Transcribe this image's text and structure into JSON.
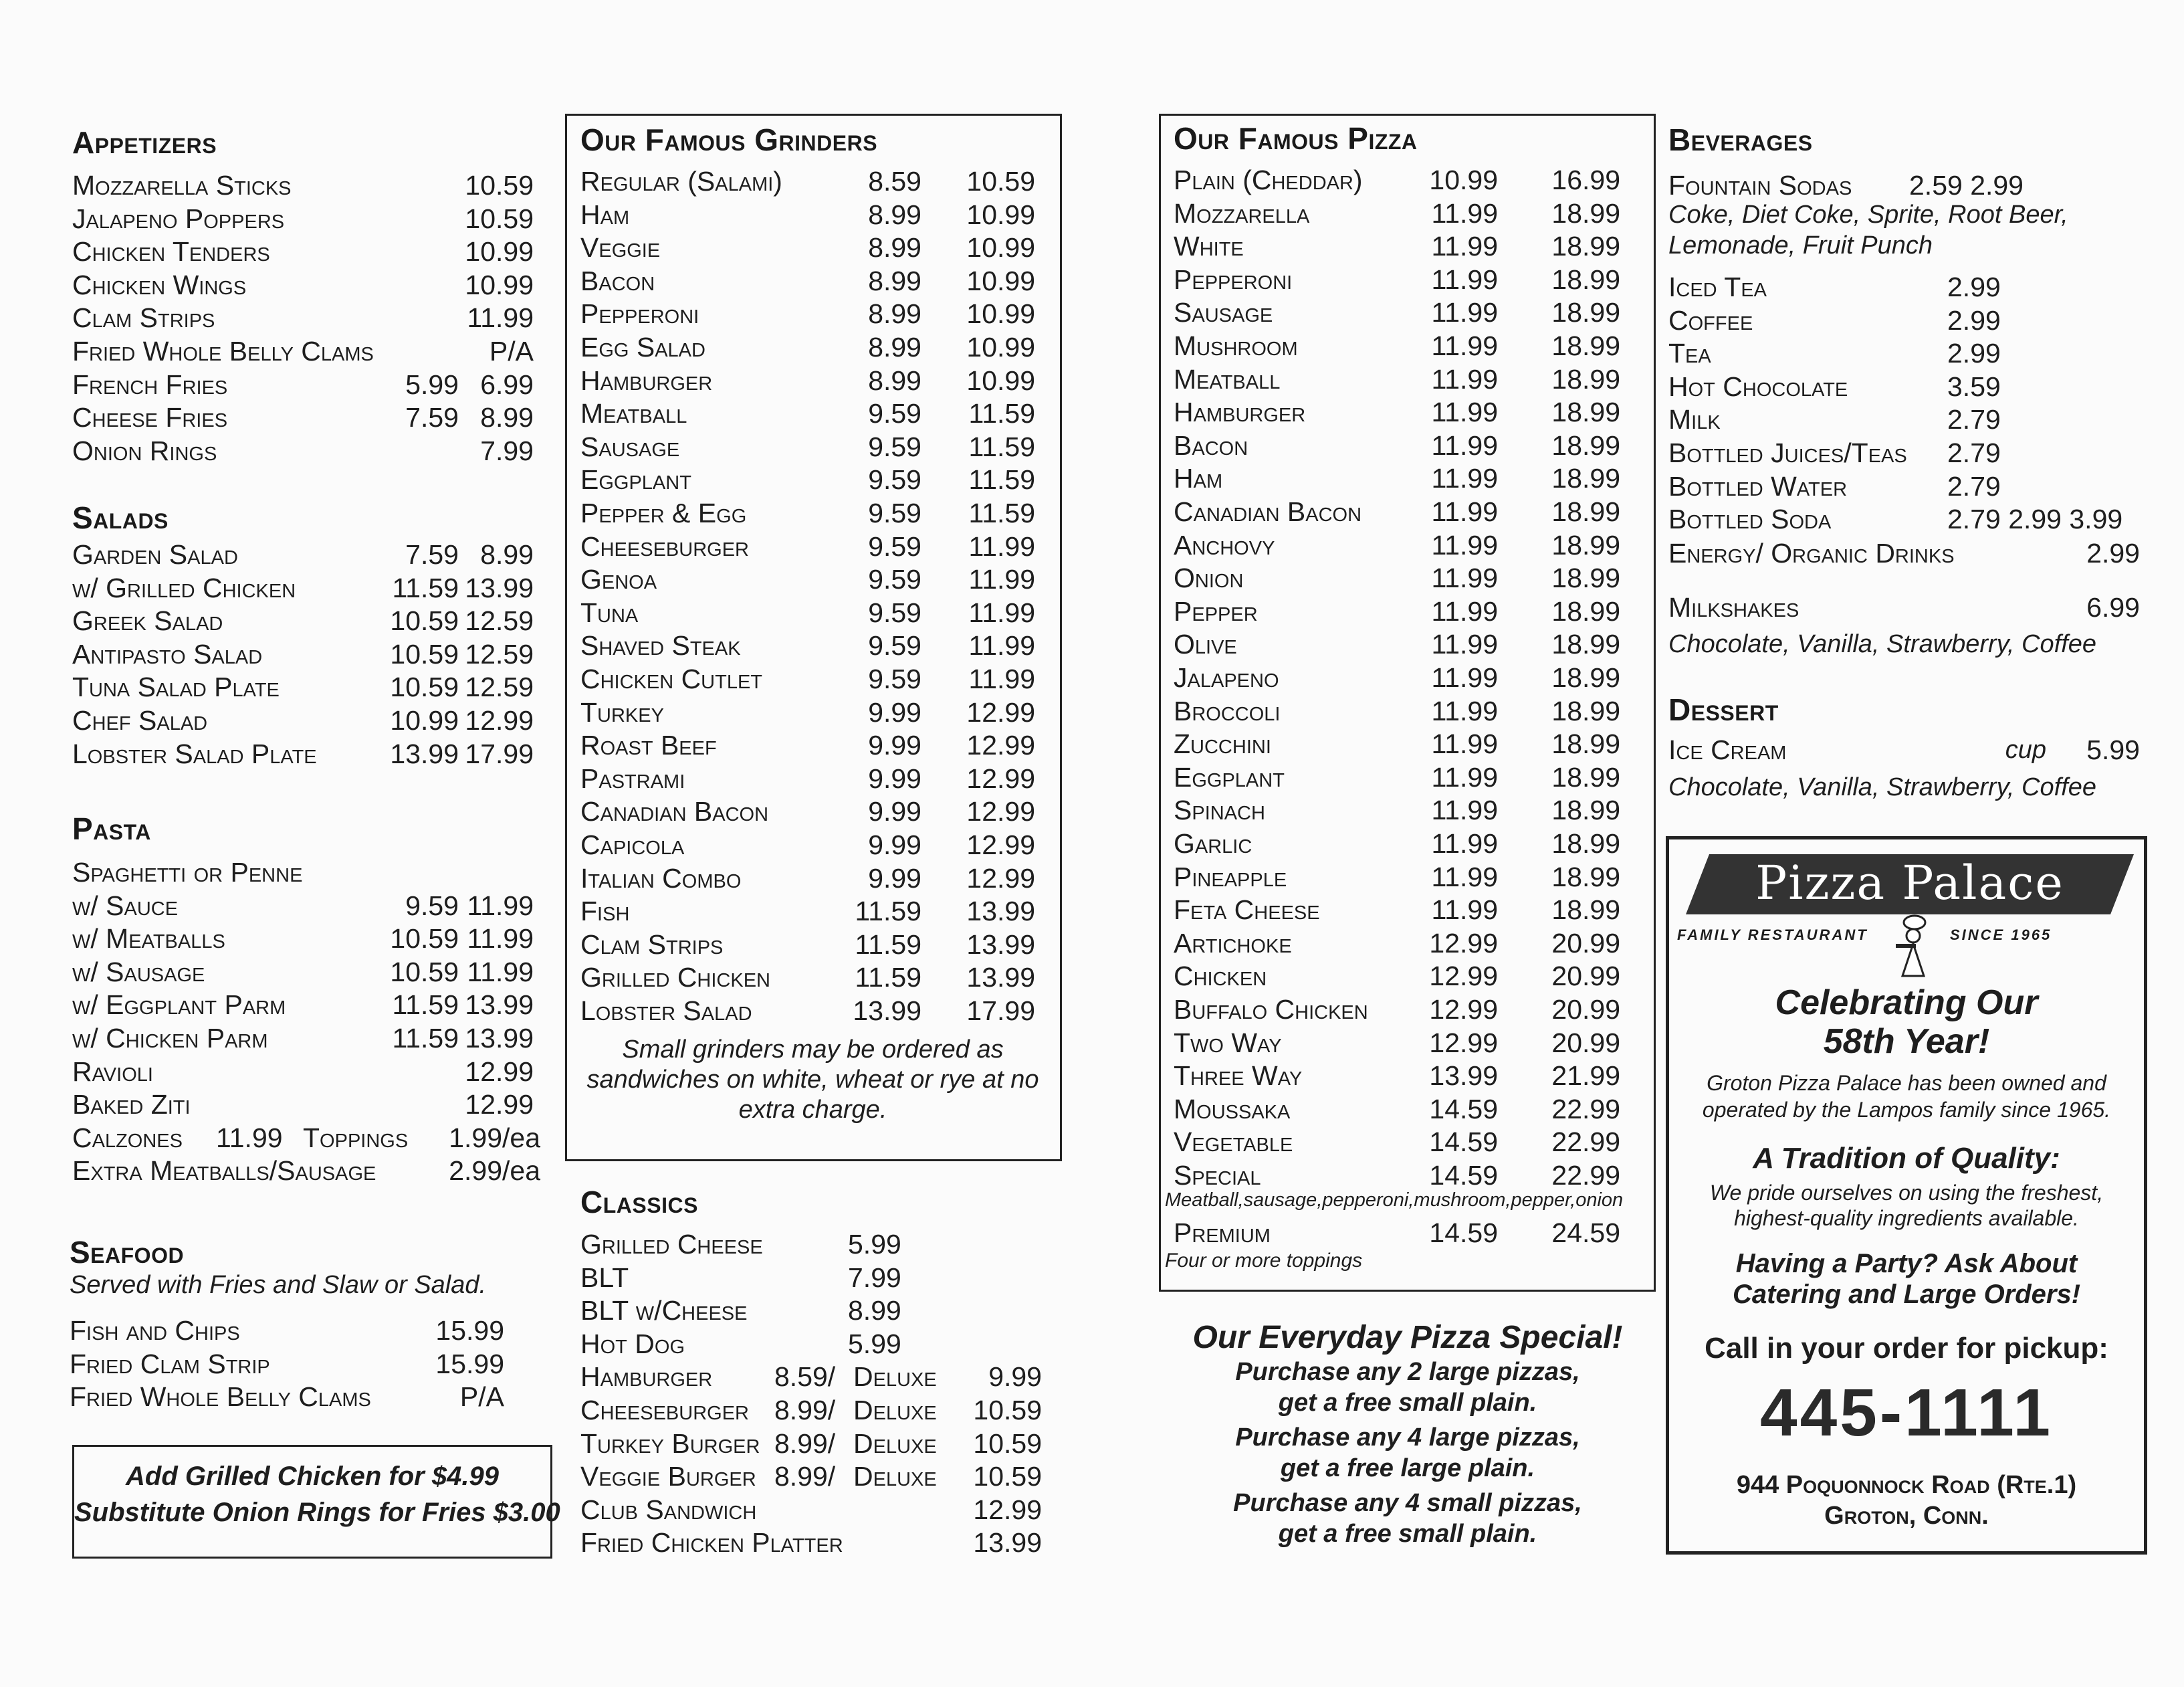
{
  "appetizers": {
    "title": "Appetizers",
    "items": [
      {
        "name": "Mozzarella Sticks",
        "p1": "",
        "p2": "10.59"
      },
      {
        "name": "Jalapeno Poppers",
        "p1": "",
        "p2": "10.59"
      },
      {
        "name": "Chicken Tenders",
        "p1": "",
        "p2": "10.99"
      },
      {
        "name": "Chicken Wings",
        "p1": "",
        "p2": "10.99"
      },
      {
        "name": "Clam Strips",
        "p1": "",
        "p2": "11.99"
      },
      {
        "name": "Fried Whole Belly Clams",
        "p1": "",
        "p2": "P/A"
      },
      {
        "name": "French Fries",
        "p1": "5.99",
        "p2": "6.99"
      },
      {
        "name": "Cheese Fries",
        "p1": "7.59",
        "p2": "8.99"
      },
      {
        "name": "Onion Rings",
        "p1": "",
        "p2": "7.99"
      }
    ]
  },
  "salads": {
    "title": "Salads",
    "items": [
      {
        "name": "Garden Salad",
        "p1": "7.59",
        "p2": "8.99"
      },
      {
        "name": "w/ Grilled Chicken",
        "p1": "11.59",
        "p2": "13.99"
      },
      {
        "name": "Greek Salad",
        "p1": "10.59",
        "p2": "12.59"
      },
      {
        "name": "Antipasto Salad",
        "p1": "10.59",
        "p2": "12.59"
      },
      {
        "name": "Tuna Salad Plate",
        "p1": "10.59",
        "p2": "12.59"
      },
      {
        "name": "Chef Salad",
        "p1": "10.99",
        "p2": "12.99"
      },
      {
        "name": "Lobster Salad Plate",
        "p1": "13.99",
        "p2": "17.99"
      }
    ]
  },
  "pasta": {
    "title": "Pasta",
    "items": [
      {
        "name": "Spaghetti or Penne",
        "p1": "",
        "p2": ""
      },
      {
        "name": "w/ Sauce",
        "p1": "9.59",
        "p2": "11.99"
      },
      {
        "name": "w/ Meatballs",
        "p1": "10.59",
        "p2": "11.99"
      },
      {
        "name": "w/ Sausage",
        "p1": "10.59",
        "p2": "11.99"
      },
      {
        "name": "w/ Eggplant Parm",
        "p1": "11.59",
        "p2": "13.99"
      },
      {
        "name": "w/ Chicken Parm",
        "p1": "11.59",
        "p2": "13.99"
      },
      {
        "name": "Ravioli",
        "p1": "",
        "p2": "12.99"
      },
      {
        "name": "Baked Ziti",
        "p1": "",
        "p2": "12.99"
      }
    ],
    "calzones": {
      "name": "Calzones",
      "price": "11.99",
      "toppings_label": "Toppings",
      "toppings_price": "1.99/ea"
    },
    "extra": {
      "name": "Extra Meatballs/Sausage",
      "price": "2.99/ea"
    }
  },
  "seafood": {
    "title": "Seafood",
    "subtitle": "Served with Fries and Slaw or Salad.",
    "items": [
      {
        "name": "Fish and Chips",
        "p1": "",
        "p2": "15.99"
      },
      {
        "name": "Fried Clam Strip",
        "p1": "",
        "p2": "15.99"
      },
      {
        "name": "Fried Whole Belly Clams",
        "p1": "",
        "p2": "P/A"
      }
    ]
  },
  "addons": {
    "line1": "Add Grilled Chicken for $4.99",
    "line2": "Substitute Onion Rings for Fries $3.00"
  },
  "grinders": {
    "title": "Our Famous Grinders",
    "items": [
      {
        "name": "Regular (Salami)",
        "p1": "8.59",
        "p2": "10.59"
      },
      {
        "name": "Ham",
        "p1": "8.99",
        "p2": "10.99"
      },
      {
        "name": "Veggie",
        "p1": "8.99",
        "p2": "10.99"
      },
      {
        "name": "Bacon",
        "p1": "8.99",
        "p2": "10.99"
      },
      {
        "name": "Pepperoni",
        "p1": "8.99",
        "p2": "10.99"
      },
      {
        "name": "Egg Salad",
        "p1": "8.99",
        "p2": "10.99"
      },
      {
        "name": "Hamburger",
        "p1": "8.99",
        "p2": "10.99"
      },
      {
        "name": "Meatball",
        "p1": "9.59",
        "p2": "11.59"
      },
      {
        "name": "Sausage",
        "p1": "9.59",
        "p2": "11.59"
      },
      {
        "name": "Eggplant",
        "p1": "9.59",
        "p2": "11.59"
      },
      {
        "name": "Pepper & Egg",
        "p1": "9.59",
        "p2": "11.59"
      },
      {
        "name": "Cheeseburger",
        "p1": "9.59",
        "p2": "11.99"
      },
      {
        "name": "Genoa",
        "p1": "9.59",
        "p2": "11.99"
      },
      {
        "name": "Tuna",
        "p1": "9.59",
        "p2": "11.99"
      },
      {
        "name": "Shaved Steak",
        "p1": "9.59",
        "p2": "11.99"
      },
      {
        "name": "Chicken Cutlet",
        "p1": "9.59",
        "p2": "11.99"
      },
      {
        "name": "Turkey",
        "p1": "9.99",
        "p2": "12.99"
      },
      {
        "name": "Roast Beef",
        "p1": "9.99",
        "p2": "12.99"
      },
      {
        "name": "Pastrami",
        "p1": "9.99",
        "p2": "12.99"
      },
      {
        "name": "Canadian Bacon",
        "p1": "9.99",
        "p2": "12.99"
      },
      {
        "name": "Capicola",
        "p1": "9.99",
        "p2": "12.99"
      },
      {
        "name": "Italian Combo",
        "p1": "9.99",
        "p2": "12.99"
      },
      {
        "name": "Fish",
        "p1": "11.59",
        "p2": "13.99"
      },
      {
        "name": "Clam Strips",
        "p1": "11.59",
        "p2": "13.99"
      },
      {
        "name": "Grilled Chicken",
        "p1": "11.59",
        "p2": "13.99"
      },
      {
        "name": "Lobster Salad",
        "p1": "13.99",
        "p2": "17.99"
      }
    ],
    "note": [
      "Small grinders may be ordered as",
      "sandwiches on white, wheat or rye at no",
      "extra charge."
    ]
  },
  "classics": {
    "title": "Classics",
    "items": [
      {
        "name": "Grilled Cheese",
        "p1": "5.99",
        "dl": "",
        "p2": ""
      },
      {
        "name": "BLT",
        "p1": "7.99",
        "dl": "",
        "p2": ""
      },
      {
        "name": "BLT w/Cheese",
        "p1": "8.99",
        "dl": "",
        "p2": ""
      },
      {
        "name": "Hot Dog",
        "p1": "5.99",
        "dl": "",
        "p2": ""
      },
      {
        "name": "Hamburger",
        "p1": "8.59/",
        "dl": "Deluxe",
        "p2": "9.99"
      },
      {
        "name": "Cheeseburger",
        "p1": "8.99/",
        "dl": "Deluxe",
        "p2": "10.59"
      },
      {
        "name": "Turkey Burger",
        "p1": "8.99/",
        "dl": "Deluxe",
        "p2": "10.59"
      },
      {
        "name": "Veggie Burger",
        "p1": "8.99/",
        "dl": "Deluxe",
        "p2": "10.59"
      },
      {
        "name": "Club Sandwich",
        "p1": "",
        "dl": "",
        "p2": "12.99"
      },
      {
        "name": "Fried Chicken Platter",
        "p1": "",
        "dl": "",
        "p2": "13.99"
      }
    ]
  },
  "pizza": {
    "title": "Our Famous Pizza",
    "items": [
      {
        "name": "Plain (Cheddar)",
        "p1": "10.99",
        "p2": "16.99"
      },
      {
        "name": "Mozzarella",
        "p1": "11.99",
        "p2": "18.99"
      },
      {
        "name": "White",
        "p1": "11.99",
        "p2": "18.99"
      },
      {
        "name": "Pepperoni",
        "p1": "11.99",
        "p2": "18.99"
      },
      {
        "name": "Sausage",
        "p1": "11.99",
        "p2": "18.99"
      },
      {
        "name": "Mushroom",
        "p1": "11.99",
        "p2": "18.99"
      },
      {
        "name": "Meatball",
        "p1": "11.99",
        "p2": "18.99"
      },
      {
        "name": "Hamburger",
        "p1": "11.99",
        "p2": "18.99"
      },
      {
        "name": "Bacon",
        "p1": "11.99",
        "p2": "18.99"
      },
      {
        "name": "Ham",
        "p1": "11.99",
        "p2": "18.99"
      },
      {
        "name": "Canadian Bacon",
        "p1": "11.99",
        "p2": "18.99"
      },
      {
        "name": "Anchovy",
        "p1": "11.99",
        "p2": "18.99"
      },
      {
        "name": "Onion",
        "p1": "11.99",
        "p2": "18.99"
      },
      {
        "name": "Pepper",
        "p1": "11.99",
        "p2": "18.99"
      },
      {
        "name": "Olive",
        "p1": "11.99",
        "p2": "18.99"
      },
      {
        "name": "Jalapeno",
        "p1": "11.99",
        "p2": "18.99"
      },
      {
        "name": "Broccoli",
        "p1": "11.99",
        "p2": "18.99"
      },
      {
        "name": "Zucchini",
        "p1": "11.99",
        "p2": "18.99"
      },
      {
        "name": "Eggplant",
        "p1": "11.99",
        "p2": "18.99"
      },
      {
        "name": "Spinach",
        "p1": "11.99",
        "p2": "18.99"
      },
      {
        "name": "Garlic",
        "p1": "11.99",
        "p2": "18.99"
      },
      {
        "name": "Pineapple",
        "p1": "11.99",
        "p2": "18.99"
      },
      {
        "name": "Feta Cheese",
        "p1": "11.99",
        "p2": "18.99"
      },
      {
        "name": "Artichoke",
        "p1": "12.99",
        "p2": "20.99"
      },
      {
        "name": "Chicken",
        "p1": "12.99",
        "p2": "20.99"
      },
      {
        "name": "Buffalo Chicken",
        "p1": "12.99",
        "p2": "20.99"
      },
      {
        "name": "Two Way",
        "p1": "12.99",
        "p2": "20.99"
      },
      {
        "name": "Three Way",
        "p1": "13.99",
        "p2": "21.99"
      },
      {
        "name": "Moussaka",
        "p1": "14.59",
        "p2": "22.99"
      },
      {
        "name": "Vegetable",
        "p1": "14.59",
        "p2": "22.99"
      },
      {
        "name": "Special",
        "p1": "14.59",
        "p2": "22.99"
      }
    ],
    "special_note": "Meatball,sausage,pepperoni,mushroom,pepper,onion",
    "premium": {
      "name": "Premium",
      "p1": "14.59",
      "p2": "24.59"
    },
    "premium_note": "Four or more toppings"
  },
  "pizza_special": {
    "title": "Our Everyday Pizza Special!",
    "lines": [
      "Purchase any 2 large pizzas,",
      "get a free small plain.",
      "Purchase any 4 large pizzas,",
      "get a free large plain.",
      "Purchase any 4 small pizzas,",
      "get a free small plain."
    ]
  },
  "beverages": {
    "title": "Beverages",
    "fountain": {
      "name": "Fountain Sodas",
      "price": "2.59 2.99",
      "flavors": [
        "Coke, Diet Coke, Sprite, Root Beer,",
        "Lemonade, Fruit Punch"
      ]
    },
    "items": [
      {
        "name": "Iced Tea",
        "price": "2.99"
      },
      {
        "name": "Coffee",
        "price": "2.99"
      },
      {
        "name": "Tea",
        "price": "2.99"
      },
      {
        "name": "Hot Chocolate",
        "price": "3.59"
      },
      {
        "name": "Milk",
        "price": "2.79"
      },
      {
        "name": "Bottled Juices/Teas",
        "price": "2.79"
      },
      {
        "name": "Bottled Water",
        "price": "2.79"
      },
      {
        "name": "Bottled Soda",
        "price": "2.79 2.99 3.99"
      }
    ],
    "energy": {
      "name": "Energy/ Organic Drinks",
      "price": "2.99"
    },
    "milkshakes": {
      "name": "Milkshakes",
      "price": "6.99",
      "flavors": "Chocolate, Vanilla, Strawberry, Coffee"
    }
  },
  "dessert": {
    "title": "Dessert",
    "item": {
      "name": "Ice Cream",
      "unit": "cup",
      "price": "5.99"
    },
    "flavors": "Chocolate, Vanilla, Strawberry, Coffee"
  },
  "promo": {
    "logo_text": "Pizza Palace",
    "tagline_left": "Family Restaurant",
    "tagline_right": "Since 1965",
    "celebrating": [
      "Celebrating Our",
      "58th Year!"
    ],
    "history": [
      "Groton Pizza Palace has been owned and",
      "operated by the Lampos family since 1965."
    ],
    "tradition_title": "A Tradition of Quality:",
    "tradition_text": [
      "We pride ourselves on using the freshest,",
      "highest-quality ingredients available."
    ],
    "party": [
      "Having a Party? Ask About",
      "Catering and Large Orders!"
    ],
    "call": "Call in your order for pickup:",
    "phone": "445-1111",
    "address": [
      "944 Poquonnock Road (Rte.1)",
      "Groton, Conn."
    ]
  }
}
